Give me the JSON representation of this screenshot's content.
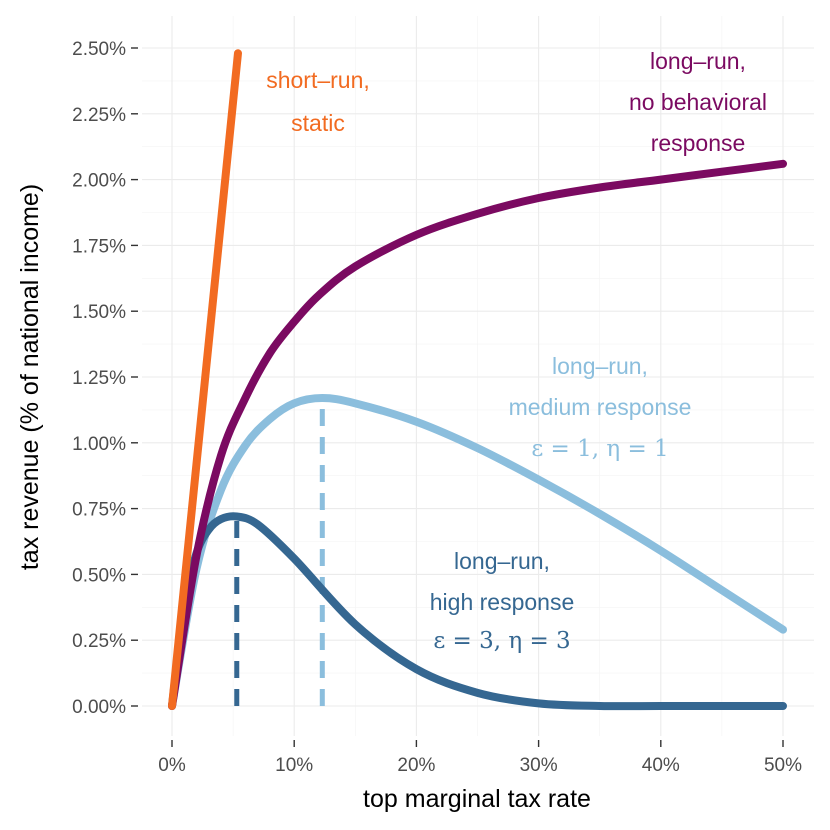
{
  "chart_data": {
    "type": "line",
    "title": "",
    "xlabel": "top marginal tax rate",
    "ylabel": "tax revenue (% of national income)",
    "xlim": [
      0,
      50
    ],
    "ylim": [
      0,
      2.5
    ],
    "x_ticks": [
      0,
      10,
      20,
      30,
      40,
      50
    ],
    "x_tick_labels": [
      "0%",
      "10%",
      "20%",
      "30%",
      "40%",
      "50%"
    ],
    "y_ticks": [
      0,
      0.25,
      0.5,
      0.75,
      1.0,
      1.25,
      1.5,
      1.75,
      2.0,
      2.25,
      2.5
    ],
    "y_tick_labels": [
      "0.00%",
      "0.25%",
      "0.50%",
      "0.75%",
      "1.00%",
      "1.25%",
      "1.50%",
      "1.75%",
      "2.00%",
      "2.25%",
      "2.50%"
    ],
    "grid": true,
    "legend": "none",
    "series": [
      {
        "name": "short-run, static",
        "color": "#f26b21",
        "x": [
          0,
          5.4
        ],
        "values": [
          0,
          2.48
        ]
      },
      {
        "name": "long-run, no behavioral response",
        "color": "#7b0a61",
        "x": [
          0,
          2,
          4,
          6,
          8,
          10,
          12,
          15,
          20,
          25,
          30,
          35,
          40,
          45,
          50
        ],
        "values": [
          0,
          0.57,
          0.95,
          1.17,
          1.34,
          1.46,
          1.56,
          1.67,
          1.79,
          1.87,
          1.93,
          1.97,
          2.0,
          2.03,
          2.06
        ]
      },
      {
        "name": "long-run, medium response",
        "color": "#8bbedd",
        "x": [
          0,
          2,
          4,
          6,
          8,
          10,
          12.3,
          15,
          20,
          25,
          30,
          35,
          40,
          45,
          50
        ],
        "values": [
          0,
          0.52,
          0.82,
          0.99,
          1.09,
          1.15,
          1.17,
          1.15,
          1.08,
          0.98,
          0.86,
          0.73,
          0.59,
          0.44,
          0.29
        ],
        "peak_x": 12.3,
        "annotation": [
          "long–run,",
          "medium response",
          "ε = 1, η = 1"
        ]
      },
      {
        "name": "long-run, high response",
        "color": "#356791",
        "x": [
          0,
          1,
          2,
          3,
          4,
          5.3,
          7,
          10,
          15,
          20,
          25,
          30,
          35,
          40,
          45,
          50
        ],
        "values": [
          0,
          0.38,
          0.58,
          0.67,
          0.71,
          0.72,
          0.69,
          0.56,
          0.31,
          0.14,
          0.05,
          0.01,
          0.0,
          0.0,
          0.0,
          0.0
        ],
        "peak_x": 5.3,
        "annotation": [
          "long–run,",
          "high response",
          "ε = 3, η = 3"
        ]
      }
    ],
    "annotations": {
      "short_run": [
        "short–run,",
        "static"
      ],
      "no_response": [
        "long–run,",
        "no behavioral",
        "response"
      ],
      "medium": [
        "long–run,",
        "medium response",
        "ε = 1, η = 1"
      ],
      "high": [
        "long–run,",
        "high response",
        "ε = 3, η = 3"
      ]
    }
  }
}
